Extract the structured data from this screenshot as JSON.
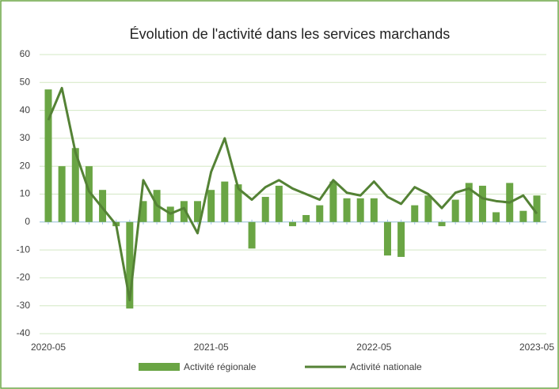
{
  "chart_data": {
    "type": "bar-line",
    "title": "Évolution de l'activité dans les services marchands",
    "categories": [
      "2020-05",
      null,
      null,
      null,
      null,
      null,
      null,
      null,
      null,
      null,
      null,
      null,
      "2021-05",
      null,
      null,
      null,
      null,
      null,
      null,
      null,
      null,
      null,
      null,
      null,
      "2022-05",
      null,
      null,
      null,
      null,
      null,
      null,
      null,
      null,
      null,
      null,
      null,
      "2023-05"
    ],
    "series": [
      {
        "name": "Activité régionale",
        "type": "bar",
        "color": "#6aa544",
        "values": [
          47.5,
          20,
          26.5,
          20,
          11.5,
          -1.5,
          -31,
          7.5,
          11.5,
          5.5,
          7.5,
          7.5,
          11.5,
          14.5,
          13.5,
          -9.5,
          9,
          13,
          -1.5,
          2.5,
          6,
          14.5,
          8.5,
          8.5,
          8.5,
          -12,
          -12.5,
          6,
          9.5,
          -1.5,
          8,
          14,
          13,
          3.5,
          14,
          4,
          9.5
        ]
      },
      {
        "name": "Activité nationale",
        "type": "line",
        "color": "#548235",
        "values": [
          36.5,
          48,
          25,
          11,
          5,
          -1,
          -28,
          15,
          6,
          3,
          5,
          -4,
          18,
          30,
          12,
          8,
          12.5,
          15,
          12,
          10,
          8,
          15,
          10.5,
          9.5,
          14.5,
          9,
          6.5,
          12.5,
          10,
          5,
          10.5,
          12,
          8.5,
          7.5,
          7,
          9.5,
          3
        ]
      }
    ],
    "ylim": [
      -40,
      60
    ],
    "yticks": [
      -40,
      -30,
      -20,
      -10,
      0,
      10,
      20,
      30,
      40,
      50,
      60
    ],
    "grid": true
  }
}
